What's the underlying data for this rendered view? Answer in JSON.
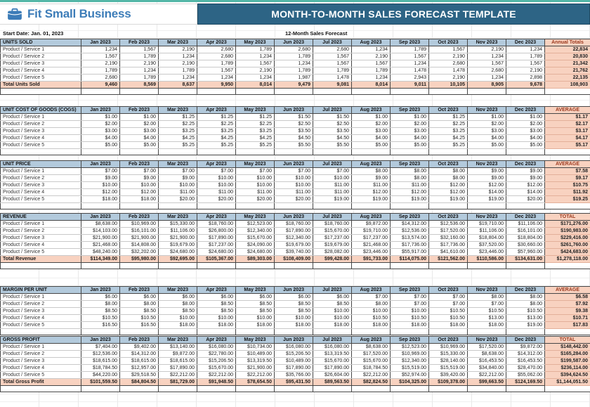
{
  "header": {
    "brand": "Fit Small Business",
    "title": "MONTH-TO-MONTH SALES FORECAST TEMPLATE"
  },
  "meta": {
    "start_date": "Start Date: Jan. 01, 2023",
    "forecast_label": "12-Month Sales Forecast"
  },
  "colors": {
    "top_strip_teal": "#54b7a8",
    "brand_blue": "#3c7cb8",
    "title_band_blue": "#2d6485",
    "month_header_fill": "#b3cadc",
    "highlight_salmon": "#f8d2c0",
    "summary_header_text": "#9c3a1e"
  },
  "months": [
    "Jan 2023",
    "Feb 2023",
    "Mar 2023",
    "Apr 2023",
    "May 2023",
    "Jun 2023",
    "Jul 2023",
    "Aug 2023",
    "Sep 2023",
    "Oct 2023",
    "Nov 2023",
    "Dec 2023"
  ],
  "sections": [
    {
      "id": "units-sold",
      "title": "UNITS SOLD",
      "last_col": "Annual Totals",
      "rows": [
        {
          "label": "Product / Service 1",
          "values": [
            "1,234",
            "1,567",
            "2,190",
            "2,680",
            "1,789",
            "2,680",
            "2,680",
            "1,234",
            "1,789",
            "1,567",
            "2,190",
            "1,234"
          ],
          "last": "22,834"
        },
        {
          "label": "Product / Service 2",
          "values": [
            "1,567",
            "1,789",
            "1,234",
            "2,680",
            "1,234",
            "1,789",
            "1,567",
            "2,190",
            "1,567",
            "2,190",
            "1,234",
            "1,789"
          ],
          "last": "20,830"
        },
        {
          "label": "Product / Service 3",
          "values": [
            "2,190",
            "2,190",
            "2,190",
            "1,789",
            "1,567",
            "1,234",
            "1,567",
            "1,567",
            "1,234",
            "2,680",
            "1,567",
            "1,567"
          ],
          "last": "21,342"
        },
        {
          "label": "Product / Service 4",
          "values": [
            "1,789",
            "1,234",
            "1,789",
            "1,567",
            "2,190",
            "1,789",
            "1,789",
            "1,789",
            "1,478",
            "1,478",
            "2,680",
            "2,190"
          ],
          "last": "21,762"
        },
        {
          "label": "Product / Service 5",
          "values": [
            "2,680",
            "1,789",
            "1,234",
            "1,234",
            "1,234",
            "1,987",
            "1,478",
            "1,234",
            "2,943",
            "2,190",
            "1,234",
            "2,898"
          ],
          "last": "22,135"
        }
      ],
      "total_row": {
        "label": "Total Units Sold",
        "values": [
          "9,460",
          "8,569",
          "8,637",
          "9,950",
          "8,014",
          "9,479",
          "9,081",
          "8,014",
          "9,011",
          "10,105",
          "8,905",
          "9,678"
        ],
        "last": "108,903"
      }
    },
    {
      "id": "cogs",
      "title": "UNIT COST OF GOODS (COGS)",
      "last_col": "AVERAGE",
      "rows": [
        {
          "label": "Product / Service 1",
          "values": [
            "$1.00",
            "$1.00",
            "$1.25",
            "$1.25",
            "$1.25",
            "$1.50",
            "$1.50",
            "$1.00",
            "$1.00",
            "$1.25",
            "$1.00",
            "$1.00"
          ],
          "last": "$1.17"
        },
        {
          "label": "Product / Service 2",
          "values": [
            "$2.00",
            "$2.00",
            "$2.25",
            "$2.25",
            "$2.25",
            "$2.50",
            "$2.50",
            "$2.00",
            "$2.00",
            "$2.25",
            "$2.00",
            "$2.00"
          ],
          "last": "$2.17"
        },
        {
          "label": "Product / Service 3",
          "values": [
            "$3.00",
            "$3.00",
            "$3.25",
            "$3.25",
            "$3.25",
            "$3.50",
            "$3.50",
            "$3.00",
            "$3.00",
            "$3.25",
            "$3.00",
            "$3.00"
          ],
          "last": "$3.17"
        },
        {
          "label": "Product / Service 4",
          "values": [
            "$4.00",
            "$4.00",
            "$4.25",
            "$4.25",
            "$4.25",
            "$4.50",
            "$4.50",
            "$4.00",
            "$4.00",
            "$4.25",
            "$4.00",
            "$4.00"
          ],
          "last": "$4.17"
        },
        {
          "label": "Product / Service 5",
          "values": [
            "$5.00",
            "$5.00",
            "$5.25",
            "$5.25",
            "$5.25",
            "$5.50",
            "$5.50",
            "$5.00",
            "$5.00",
            "$5.25",
            "$5.00",
            "$5.00"
          ],
          "last": "$5.17"
        }
      ],
      "total_row": null
    },
    {
      "id": "unit-price",
      "title": "UNIT PRICE",
      "last_col": "AVERAGE",
      "rows": [
        {
          "label": "Product / Service 1",
          "values": [
            "$7.00",
            "$7.00",
            "$7.00",
            "$7.00",
            "$7.00",
            "$7.00",
            "$7.00",
            "$8.00",
            "$8.00",
            "$8.00",
            "$9.00",
            "$9.00"
          ],
          "last": "$7.58"
        },
        {
          "label": "Product / Service 2",
          "values": [
            "$9.00",
            "$9.00",
            "$9.00",
            "$10.00",
            "$10.00",
            "$10.00",
            "$10.00",
            "$9.00",
            "$8.00",
            "$8.00",
            "$9.00",
            "$9.00"
          ],
          "last": "$9.17"
        },
        {
          "label": "Product / Service 3",
          "values": [
            "$10.00",
            "$10.00",
            "$10.00",
            "$10.00",
            "$10.00",
            "$10.00",
            "$11.00",
            "$11.00",
            "$11.00",
            "$12.00",
            "$12.00",
            "$12.00"
          ],
          "last": "$10.75"
        },
        {
          "label": "Product / Service 4",
          "values": [
            "$12.00",
            "$12.00",
            "$11.00",
            "$11.00",
            "$11.00",
            "$11.00",
            "$11.00",
            "$12.00",
            "$12.00",
            "$12.00",
            "$14.00",
            "$14.00"
          ],
          "last": "$11.92"
        },
        {
          "label": "Product / Service 5",
          "values": [
            "$18.00",
            "$18.00",
            "$20.00",
            "$20.00",
            "$20.00",
            "$20.00",
            "$19.00",
            "$19.00",
            "$19.00",
            "$19.00",
            "$19.00",
            "$20.00"
          ],
          "last": "$19.25"
        }
      ],
      "total_row": null
    },
    {
      "id": "revenue",
      "title": "REVENUE",
      "last_col": "TOTAL",
      "rows": [
        {
          "label": "Product / Service 1",
          "values": [
            "$8,638.00",
            "$10,969.00",
            "$15,330.00",
            "$18,760.00",
            "$12,523.00",
            "$18,760.00",
            "$18,760.00",
            "$9,872.00",
            "$14,312.00",
            "$12,536.00",
            "$19,710.00",
            "$11,106.00"
          ],
          "last": "$171,276.00"
        },
        {
          "label": "Product / Service 2",
          "values": [
            "$14,103.00",
            "$16,101.00",
            "$11,106.00",
            "$26,800.00",
            "$12,340.00",
            "$17,890.00",
            "$15,670.00",
            "$19,710.00",
            "$12,536.00",
            "$17,520.00",
            "$11,106.00",
            "$16,101.00"
          ],
          "last": "$190,983.00"
        },
        {
          "label": "Product / Service 3",
          "values": [
            "$21,900.00",
            "$21,900.00",
            "$21,900.00",
            "$17,890.00",
            "$15,670.00",
            "$12,340.00",
            "$17,237.00",
            "$17,237.00",
            "$13,574.00",
            "$32,160.00",
            "$18,804.00",
            "$18,804.00"
          ],
          "last": "$229,416.00"
        },
        {
          "label": "Product / Service 4",
          "values": [
            "$21,468.00",
            "$14,808.00",
            "$19,679.00",
            "$17,237.00",
            "$24,090.00",
            "$19,679.00",
            "$19,679.00",
            "$21,468.00",
            "$17,736.00",
            "$17,736.00",
            "$37,520.00",
            "$30,660.00"
          ],
          "last": "$261,760.00"
        },
        {
          "label": "Product / Service 5",
          "values": [
            "$48,240.00",
            "$32,202.00",
            "$24,680.00",
            "$24,680.00",
            "$24,680.00",
            "$39,740.00",
            "$28,082.00",
            "$23,446.00",
            "$55,917.00",
            "$41,610.00",
            "$23,446.00",
            "$57,960.00"
          ],
          "last": "$424,683.00"
        }
      ],
      "total_row": {
        "label": "Total Revenue",
        "values": [
          "$114,349.00",
          "$95,980.00",
          "$92,695.00",
          "$105,367.00",
          "$89,303.00",
          "$108,409.00",
          "$99,428.00",
          "$91,733.00",
          "$114,075.00",
          "$121,562.00",
          "$110,586.00",
          "$134,631.00"
        ],
        "last": "$1,278,118.00"
      }
    },
    {
      "id": "margin-per-unit",
      "title": "MARGIN PER UNIT",
      "last_col": "AVERAGE",
      "rows": [
        {
          "label": "Product / Service 1",
          "values": [
            "$6.00",
            "$6.00",
            "$6.00",
            "$6.00",
            "$6.00",
            "$6.00",
            "$6.00",
            "$7.00",
            "$7.00",
            "$7.00",
            "$8.00",
            "$8.00"
          ],
          "last": "$6.58"
        },
        {
          "label": "Product / Service 2",
          "values": [
            "$8.00",
            "$8.00",
            "$8.00",
            "$8.50",
            "$8.50",
            "$8.50",
            "$8.50",
            "$8.00",
            "$7.00",
            "$7.00",
            "$7.00",
            "$8.00"
          ],
          "last": "$7.92"
        },
        {
          "label": "Product / Service 3",
          "values": [
            "$8.50",
            "$8.50",
            "$8.50",
            "$8.50",
            "$8.50",
            "$8.50",
            "$10.00",
            "$10.00",
            "$10.00",
            "$10.50",
            "$10.50",
            "$10.50"
          ],
          "last": "$9.38"
        },
        {
          "label": "Product / Service 4",
          "values": [
            "$10.50",
            "$10.50",
            "$10.00",
            "$10.00",
            "$10.00",
            "$10.00",
            "$10.00",
            "$10.50",
            "$10.50",
            "$10.50",
            "$13.00",
            "$13.00"
          ],
          "last": "$10.71"
        },
        {
          "label": "Product / Service 5",
          "values": [
            "$16.50",
            "$16.50",
            "$18.00",
            "$18.00",
            "$18.00",
            "$18.00",
            "$18.00",
            "$18.00",
            "$18.00",
            "$18.00",
            "$18.00",
            "$19.00"
          ],
          "last": "$17.83"
        }
      ],
      "total_row": null
    },
    {
      "id": "gross-profit",
      "title": "GROSS PROFIT",
      "last_col": "TOTAL",
      "rows": [
        {
          "label": "Product / Service 1",
          "values": [
            "$7,404.00",
            "$9,402.00",
            "$13,140.00",
            "$16,080.00",
            "$10,734.00",
            "$16,080.00",
            "$16,080.00",
            "$8,638.00",
            "$12,523.00",
            "$10,969.00",
            "$17,520.00",
            "$9,872.00"
          ],
          "last": "$148,442.00"
        },
        {
          "label": "Product / Service 2",
          "values": [
            "$12,536.00",
            "$14,312.00",
            "$9,872.00",
            "$22,780.00",
            "$10,489.00",
            "$15,206.50",
            "$13,319.50",
            "$17,520.00",
            "$10,969.00",
            "$15,330.00",
            "$8,638.00",
            "$14,312.00"
          ],
          "last": "$165,284.00"
        },
        {
          "label": "Product / Service 3",
          "values": [
            "$18,615.00",
            "$18,615.00",
            "$18,615.00",
            "$15,206.50",
            "$13,319.50",
            "$10,489.00",
            "$15,670.00",
            "$15,670.00",
            "$12,340.00",
            "$28,140.00",
            "$16,453.50",
            "$16,453.50"
          ],
          "last": "$199,587.00"
        },
        {
          "label": "Product / Service 4",
          "values": [
            "$18,784.50",
            "$12,957.00",
            "$17,890.00",
            "$15,670.00",
            "$21,900.00",
            "$17,890.00",
            "$17,890.00",
            "$18,784.50",
            "$15,519.00",
            "$15,519.00",
            "$34,840.00",
            "$28,470.00"
          ],
          "last": "$236,114.00"
        },
        {
          "label": "Product / Service 5",
          "values": [
            "$44,220.00",
            "$29,518.50",
            "$22,212.00",
            "$22,212.00",
            "$22,212.00",
            "$35,766.00",
            "$26,604.00",
            "$22,212.00",
            "$52,974.00",
            "$39,420.00",
            "$22,212.00",
            "$55,062.00"
          ],
          "last": "$394,624.50"
        }
      ],
      "total_row": {
        "label": "Total Gross Profit",
        "values": [
          "$101,559.50",
          "$84,804.50",
          "$81,729.00",
          "$91,948.50",
          "$78,654.50",
          "$95,431.50",
          "$89,563.50",
          "$82,824.50",
          "$104,325.00",
          "$109,378.00",
          "$99,663.50",
          "$124,169.50"
        ],
        "last": "$1,144,051.50"
      }
    }
  ]
}
